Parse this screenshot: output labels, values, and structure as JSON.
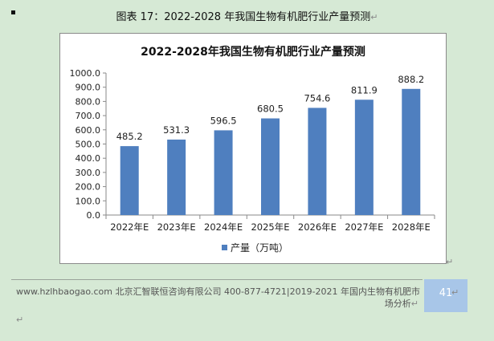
{
  "caption": "图表  17：2022-2028 年我国生物有机肥行业产量预测",
  "para_mark": "↵",
  "chart_data": {
    "type": "bar",
    "title": "2022-2028年我国生物有机肥行业产量预测",
    "categories": [
      "2022年E",
      "2023年E",
      "2024年E",
      "2025年E",
      "2026年E",
      "2027年E",
      "2028年E"
    ],
    "series": [
      {
        "name": "产量（万吨）",
        "values": [
          485.2,
          531.3,
          596.5,
          680.5,
          754.6,
          811.9,
          888.2
        ],
        "color": "#4f7fbf"
      }
    ],
    "value_labels": [
      "485.2",
      "531.3",
      "596.5",
      "680.5",
      "754.6",
      "811.9",
      "888.2"
    ],
    "ylim": [
      0,
      1000
    ],
    "y_ticks": [
      "0.0",
      "100.0",
      "200.0",
      "300.0",
      "400.0",
      "500.0",
      "600.0",
      "700.0",
      "800.0",
      "900.0",
      "1000.0"
    ],
    "grid": false,
    "legend_position": "bottom"
  },
  "footer": {
    "text_line1": "www.hzlhbaogao.com 北京汇智联恒咨询有限公司  400-877-4721|2019-2021 年国内生物有机肥市",
    "text_line2": "场分析",
    "page_number": "41"
  }
}
